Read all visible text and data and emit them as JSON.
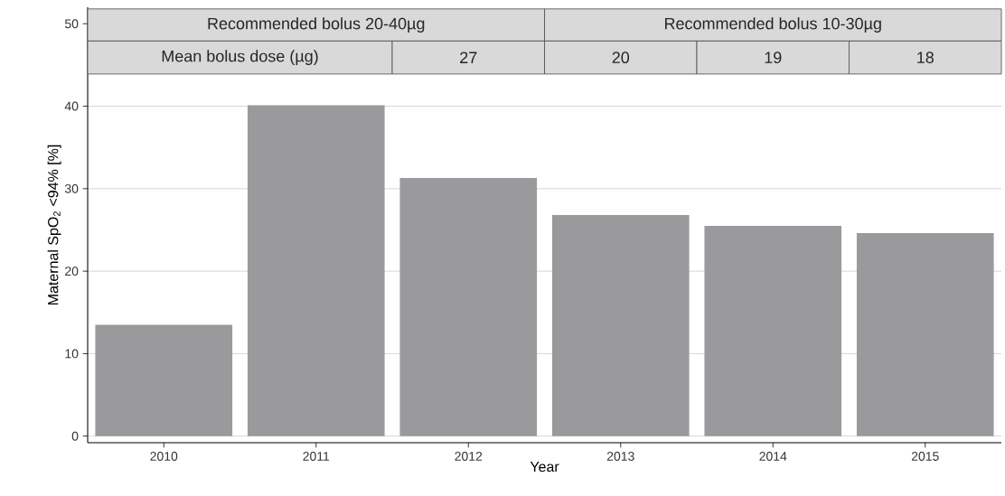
{
  "chart_data": {
    "type": "bar",
    "xlabel": "Year",
    "ylabel": "Maternal SpO$_{2}$ <94% [%]",
    "categories": [
      "2010",
      "2011",
      "2012",
      "2013",
      "2014",
      "2015"
    ],
    "values": [
      13.5,
      40.1,
      31.3,
      26.8,
      25.5,
      24.6
    ],
    "color": "#9a9a9d",
    "ylim": [
      -0.8,
      52
    ],
    "yticks": [
      0,
      10,
      20,
      30,
      40,
      50
    ],
    "grid": "y",
    "annotations": [
      "Recommended bolus 20-40µg",
      "Recommended bolus 10-30µg",
      "Mean bolus dose (µg)",
      "27",
      "20",
      "19",
      "18"
    ]
  }
}
